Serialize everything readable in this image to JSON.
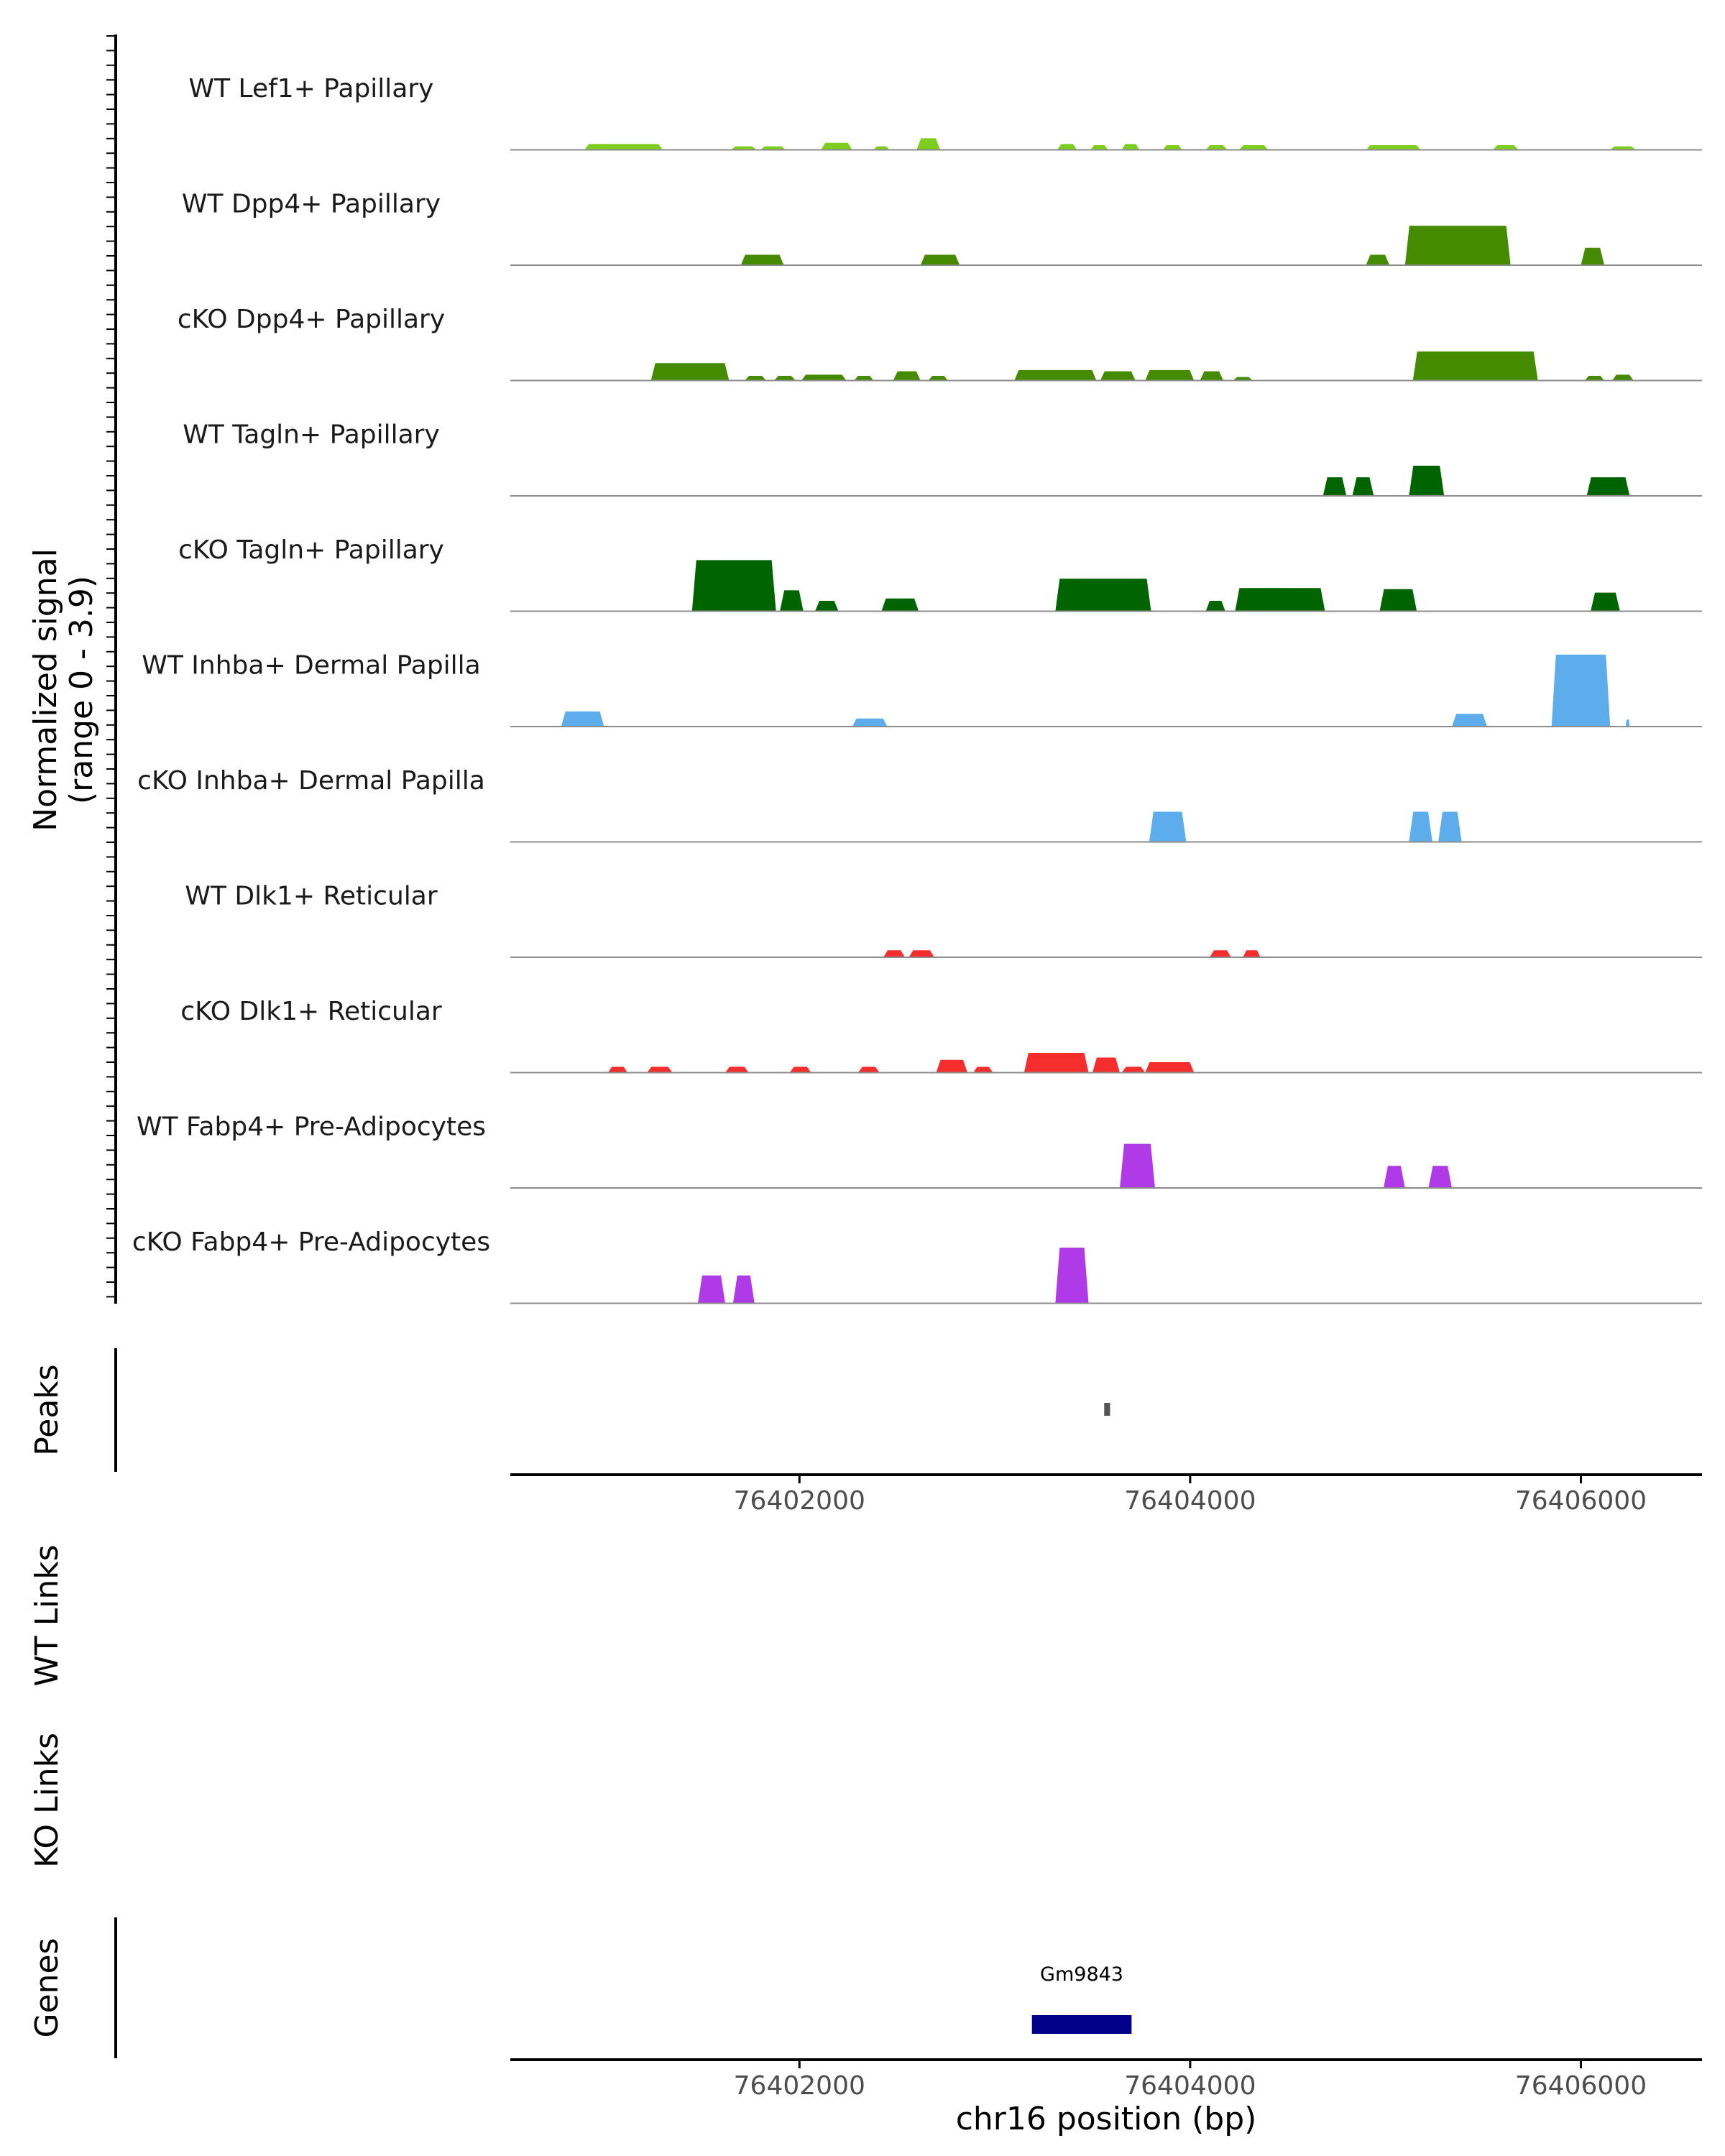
{
  "chart_data": {
    "type": "area",
    "signal_axis_label": "Normalized signal",
    "signal_axis_range_label": "(range 0 - 3.9)",
    "signal_range": [
      0,
      3.9
    ],
    "x_range": [
      76400520,
      76406620
    ],
    "x_ticks": [
      76402000,
      76404000,
      76406000
    ],
    "x_tick_labels": [
      "76402000",
      "76404000",
      "76406000"
    ],
    "x_axis_label": "chr16 position (bp)",
    "peaks_label": "Peaks",
    "wt_links_label": "WT Links",
    "ko_links_label": "KO Links",
    "genes_label": "Genes",
    "colors": {
      "lef1": "#7CCD1E",
      "dpp4": "#458B00",
      "tagln": "#006400",
      "inhba": "#5DADEC",
      "dlk1": "#F42D2D",
      "fabp4": "#B03AE8",
      "gene": "#00008B",
      "peak": "#555555",
      "baseline": "#8c8c8c"
    },
    "tracks": [
      {
        "label": "WT Lef1+ Papillary",
        "color": "lef1",
        "segments": [
          [
            76400900,
            76401300,
            0.25
          ],
          [
            76401650,
            76401780,
            0.15
          ],
          [
            76401800,
            76401930,
            0.15
          ],
          [
            76402110,
            76402270,
            0.3
          ],
          [
            76402380,
            76402460,
            0.15
          ],
          [
            76402600,
            76402720,
            0.5
          ],
          [
            76403320,
            76403420,
            0.25
          ],
          [
            76403490,
            76403580,
            0.2
          ],
          [
            76403650,
            76403740,
            0.25
          ],
          [
            76403860,
            76403960,
            0.2
          ],
          [
            76404080,
            76404190,
            0.2
          ],
          [
            76404250,
            76404400,
            0.2
          ],
          [
            76404900,
            76405180,
            0.2
          ],
          [
            76405550,
            76405680,
            0.2
          ],
          [
            76406150,
            76406280,
            0.15
          ]
        ]
      },
      {
        "label": "WT Dpp4+ Papillary",
        "color": "dpp4",
        "segments": [
          [
            76401700,
            76401920,
            0.45
          ],
          [
            76402620,
            76402820,
            0.45
          ],
          [
            76404900,
            76405020,
            0.45
          ],
          [
            76405100,
            76405640,
            1.7
          ],
          [
            76406000,
            76406120,
            0.75
          ]
        ]
      },
      {
        "label": "cKO Dpp4+ Papillary",
        "color": "dpp4",
        "segments": [
          [
            76401240,
            76401640,
            0.75
          ],
          [
            76401720,
            76401830,
            0.2
          ],
          [
            76401870,
            76401980,
            0.2
          ],
          [
            76402010,
            76402240,
            0.25
          ],
          [
            76402280,
            76402380,
            0.2
          ],
          [
            76402480,
            76402620,
            0.4
          ],
          [
            76402660,
            76402760,
            0.2
          ],
          [
            76403100,
            76403520,
            0.45
          ],
          [
            76403540,
            76403720,
            0.4
          ],
          [
            76403770,
            76404020,
            0.45
          ],
          [
            76404050,
            76404170,
            0.4
          ],
          [
            76404220,
            76404320,
            0.15
          ],
          [
            76405140,
            76405780,
            1.25
          ],
          [
            76406020,
            76406120,
            0.2
          ],
          [
            76406160,
            76406270,
            0.25
          ]
        ]
      },
      {
        "label": "WT Tagln+ Papillary",
        "color": "tagln",
        "segments": [
          [
            76404680,
            76404800,
            0.8
          ],
          [
            76404830,
            76404940,
            0.8
          ],
          [
            76405120,
            76405300,
            1.3
          ],
          [
            76406030,
            76406250,
            0.8
          ]
        ]
      },
      {
        "label": "cKO Tagln+ Papillary",
        "color": "tagln",
        "segments": [
          [
            76401450,
            76401880,
            2.2
          ],
          [
            76401900,
            76402020,
            0.9
          ],
          [
            76402080,
            76402200,
            0.45
          ],
          [
            76402420,
            76402610,
            0.55
          ],
          [
            76403310,
            76403800,
            1.4
          ],
          [
            76404080,
            76404180,
            0.45
          ],
          [
            76404230,
            76404690,
            1.0
          ],
          [
            76404970,
            76405160,
            0.95
          ],
          [
            76406050,
            76406200,
            0.8
          ]
        ]
      },
      {
        "label": "WT Inhba+ Dermal Papilla",
        "color": "inhba",
        "segments": [
          [
            76400780,
            76401000,
            0.65
          ],
          [
            76402270,
            76402450,
            0.35
          ],
          [
            76405340,
            76405520,
            0.55
          ],
          [
            76405850,
            76406150,
            3.1
          ],
          [
            76406230,
            76406250,
            0.3
          ]
        ]
      },
      {
        "label": "cKO Inhba+ Dermal Papilla",
        "color": "inhba",
        "segments": [
          [
            76403790,
            76403980,
            1.3
          ],
          [
            76405120,
            76405240,
            1.3
          ],
          [
            76405270,
            76405390,
            1.3
          ]
        ]
      },
      {
        "label": "WT Dlk1+ Reticular",
        "color": "dlk1",
        "segments": [
          [
            76402430,
            76402540,
            0.3
          ],
          [
            76402560,
            76402690,
            0.3
          ],
          [
            76404100,
            76404210,
            0.3
          ],
          [
            76404270,
            76404360,
            0.3
          ]
        ]
      },
      {
        "label": "cKO Dlk1+ Reticular",
        "color": "dlk1",
        "segments": [
          [
            76401020,
            76401120,
            0.25
          ],
          [
            76401220,
            76401350,
            0.25
          ],
          [
            76401620,
            76401740,
            0.25
          ],
          [
            76401950,
            76402060,
            0.25
          ],
          [
            76402300,
            76402410,
            0.25
          ],
          [
            76402700,
            76402860,
            0.55
          ],
          [
            76402890,
            76402990,
            0.25
          ],
          [
            76403150,
            76403480,
            0.85
          ],
          [
            76403500,
            76403640,
            0.65
          ],
          [
            76403650,
            76403770,
            0.25
          ],
          [
            76403770,
            76404020,
            0.45
          ]
        ]
      },
      {
        "label": "WT Fabp4+ Pre-Adipocytes",
        "color": "fabp4",
        "segments": [
          [
            76403640,
            76403820,
            1.9
          ],
          [
            76404990,
            76405100,
            0.95
          ],
          [
            76405220,
            76405340,
            0.95
          ]
        ]
      },
      {
        "label": "cKO Fabp4+ Pre-Adipocytes",
        "color": "fabp4",
        "segments": [
          [
            76401480,
            76401620,
            1.2
          ],
          [
            76401660,
            76401770,
            1.2
          ],
          [
            76403310,
            76403480,
            2.4
          ]
        ]
      }
    ],
    "peak_regions": [
      [
        76403560,
        76403590
      ]
    ],
    "genes": [
      {
        "name": "Gm9843",
        "start": 76403190,
        "end": 76403700
      }
    ]
  }
}
